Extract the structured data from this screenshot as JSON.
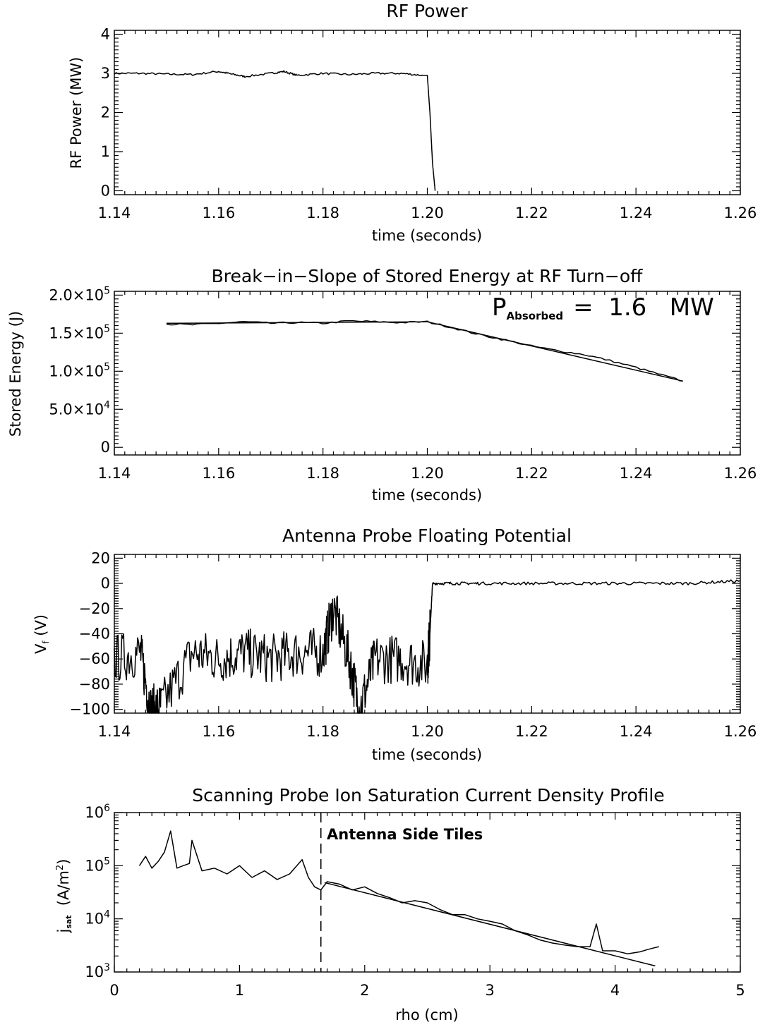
{
  "chart_data": [
    {
      "type": "line",
      "title": "RF Power",
      "xlabel": "time (seconds)",
      "ylabel": "RF Power (MW)",
      "xlim": [
        1.14,
        1.26
      ],
      "ylim": [
        -0.1,
        4.1
      ],
      "x_ticks": [
        1.14,
        1.16,
        1.18,
        1.2,
        1.22,
        1.24,
        1.26
      ],
      "x_tick_labels": [
        "1.14",
        "1.16",
        "1.18",
        "1.20",
        "1.22",
        "1.24",
        "1.26"
      ],
      "y_ticks": [
        0,
        1,
        2,
        3,
        4
      ],
      "y_tick_labels": [
        "0",
        "1",
        "2",
        "3",
        "4"
      ],
      "grid": false,
      "series": [
        {
          "x": [
            1.14,
            1.145,
            1.15,
            1.155,
            1.16,
            1.1625,
            1.165,
            1.17,
            1.1725,
            1.175,
            1.18,
            1.185,
            1.19,
            1.195,
            1.199,
            1.2,
            1.2005,
            1.201,
            1.2015
          ],
          "y": [
            3.0,
            3.0,
            2.98,
            2.97,
            3.05,
            2.98,
            2.92,
            3.0,
            3.05,
            2.95,
            3.0,
            2.97,
            3.0,
            3.0,
            2.95,
            2.95,
            2.0,
            0.7,
            0.0
          ]
        }
      ]
    },
    {
      "type": "line",
      "title": "Break−in−Slope of Stored Energy at RF Turn−off",
      "xlabel": "time (seconds)",
      "ylabel": "Stored Energy (J)",
      "xlim": [
        1.14,
        1.26
      ],
      "ylim": [
        -10000,
        205000
      ],
      "x_ticks": [
        1.14,
        1.16,
        1.18,
        1.2,
        1.22,
        1.24,
        1.26
      ],
      "x_tick_labels": [
        "1.14",
        "1.16",
        "1.18",
        "1.20",
        "1.22",
        "1.24",
        "1.26"
      ],
      "y_ticks": [
        0,
        50000,
        100000,
        150000,
        200000
      ],
      "y_tick_labels": [
        {
          "mantissa": "0",
          "exp": ""
        },
        {
          "mantissa": "5.0×10",
          "exp": "4"
        },
        {
          "mantissa": "1.0×10",
          "exp": "5"
        },
        {
          "mantissa": "1.5×10",
          "exp": "5"
        },
        {
          "mantissa": "2.0×10",
          "exp": "5"
        }
      ],
      "annotation": {
        "main": "P",
        "sub": "Absorbed",
        "rest": "=  1.6   MW"
      },
      "series": [
        {
          "x": [
            1.15,
            1.155,
            1.16,
            1.165,
            1.17,
            1.175,
            1.18,
            1.185,
            1.19,
            1.195,
            1.2,
            1.205,
            1.21,
            1.215,
            1.22,
            1.225,
            1.23,
            1.235,
            1.24,
            1.245,
            1.249
          ],
          "y": [
            162000,
            161000,
            163000,
            165000,
            163000,
            164000,
            163000,
            166000,
            165000,
            164000,
            165000,
            157000,
            148000,
            141000,
            133000,
            127000,
            122000,
            114000,
            105000,
            95000,
            87000
          ]
        },
        {
          "x": [
            1.15,
            1.2,
            1.249
          ],
          "y": [
            163000,
            165000,
            87000
          ]
        }
      ]
    },
    {
      "type": "line",
      "title": "Antenna Probe Floating Potential",
      "xlabel": "time (seconds)",
      "ylabel": {
        "main": "V",
        "sub": "f",
        "rest": " (V)"
      },
      "xlim": [
        1.14,
        1.26
      ],
      "ylim": [
        -103,
        23
      ],
      "x_ticks": [
        1.14,
        1.16,
        1.18,
        1.2,
        1.22,
        1.24,
        1.26
      ],
      "x_tick_labels": [
        "1.14",
        "1.16",
        "1.18",
        "1.20",
        "1.22",
        "1.24",
        "1.26"
      ],
      "y_ticks": [
        -100,
        -80,
        -60,
        -40,
        -20,
        0,
        20
      ],
      "y_tick_labels": [
        "−100",
        "−80",
        "−60",
        "−40",
        "−20",
        "0",
        "20"
      ],
      "series": [
        {
          "x": [
            1.14,
            1.145,
            1.147,
            1.149,
            1.155,
            1.16,
            1.165,
            1.17,
            1.175,
            1.18,
            1.182,
            1.185,
            1.187,
            1.19,
            1.195,
            1.2,
            1.2005,
            1.201,
            1.205,
            1.21,
            1.22,
            1.23,
            1.24,
            1.25,
            1.26
          ],
          "y": [
            -60,
            -55,
            -100,
            -98,
            -55,
            -60,
            -55,
            -60,
            -55,
            -55,
            -20,
            -60,
            -100,
            -60,
            -60,
            -65,
            -40,
            0,
            0,
            0,
            0,
            0,
            0,
            0,
            2
          ]
        }
      ]
    },
    {
      "type": "line",
      "title": "Scanning Probe Ion Saturation Current Density Profile",
      "xlabel": "rho (cm)",
      "ylabel": {
        "main": "j",
        "sub": "sat",
        "rest": "  (A/m",
        "sup": "2",
        "end": ")"
      },
      "xlim": [
        0,
        5
      ],
      "ylim": [
        1000,
        1000000
      ],
      "y_scale": "log",
      "x_ticks": [
        0,
        1,
        2,
        3,
        4,
        5
      ],
      "x_tick_labels": [
        "0",
        "1",
        "2",
        "3",
        "4",
        "5"
      ],
      "y_ticks": [
        1000,
        10000,
        100000,
        1000000
      ],
      "y_tick_labels": [
        {
          "mantissa": "10",
          "exp": "3"
        },
        {
          "mantissa": "10",
          "exp": "4"
        },
        {
          "mantissa": "10",
          "exp": "5"
        },
        {
          "mantissa": "10",
          "exp": "6"
        }
      ],
      "vline_x": 1.65,
      "vline_label": "Antenna Side Tiles",
      "series": [
        {
          "x": [
            0.2,
            0.25,
            0.3,
            0.35,
            0.4,
            0.45,
            0.5,
            0.55,
            0.6,
            0.62,
            0.7,
            0.8,
            0.9,
            1.0,
            1.1,
            1.2,
            1.3,
            1.4,
            1.5,
            1.55,
            1.6,
            1.65,
            1.7,
            1.8,
            1.9,
            2.0,
            2.1,
            2.2,
            2.3,
            2.4,
            2.5,
            2.6,
            2.7,
            2.8,
            2.9,
            3.0,
            3.1,
            3.2,
            3.3,
            3.4,
            3.5,
            3.6,
            3.7,
            3.8,
            3.85,
            3.9,
            4.0,
            4.1,
            4.2,
            4.25,
            4.3,
            4.35
          ],
          "y": [
            100000,
            150000,
            90000,
            120000,
            180000,
            450000,
            90000,
            100000,
            110000,
            300000,
            80000,
            90000,
            70000,
            100000,
            60000,
            80000,
            55000,
            70000,
            130000,
            60000,
            40000,
            35000,
            50000,
            45000,
            35000,
            40000,
            30000,
            25000,
            20000,
            22000,
            20000,
            15000,
            12000,
            12000,
            10000,
            9000,
            8000,
            6000,
            5000,
            4000,
            3500,
            3200,
            3000,
            3000,
            8000,
            2500,
            2500,
            2200,
            2400,
            2600,
            2800,
            3000
          ]
        },
        {
          "x": [
            1.68,
            4.32
          ],
          "y": [
            48000,
            1300
          ]
        }
      ]
    }
  ]
}
